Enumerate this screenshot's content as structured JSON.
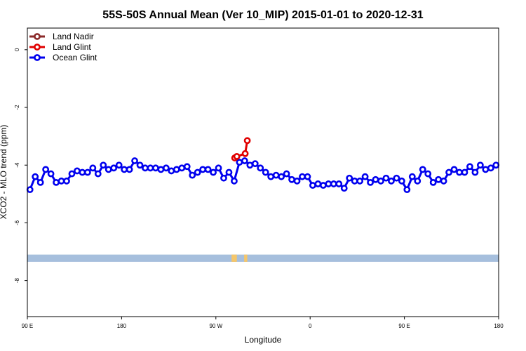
{
  "chart_data": {
    "type": "line",
    "title": "55S-50S Annual Mean (Ver 10_MIP)   2015-01-01 to 2020-12-31",
    "xlabel": "Longitude",
    "ylabel": "XCO2 - MLO trend (ppm)",
    "xlim": [
      90,
      540
    ],
    "ylim": [
      -9.25,
      0.75
    ],
    "x_ticks": [
      {
        "value": 90,
        "label": "90 E"
      },
      {
        "value": 180,
        "label": "180"
      },
      {
        "value": 270,
        "label": "90 W"
      },
      {
        "value": 360,
        "label": "0"
      },
      {
        "value": 450,
        "label": "90 E"
      },
      {
        "value": 540,
        "label": "180"
      }
    ],
    "y_ticks": [
      0,
      -2,
      -4,
      -6,
      -8
    ],
    "grid": false,
    "legend_position": "top-left",
    "series": [
      {
        "name": "Land Nadir",
        "color": "#8b2a2a",
        "x": [],
        "y": []
      },
      {
        "name": "Land Glint",
        "color": "#e00000",
        "x": [
          288,
          290,
          298,
          300
        ],
        "y": [
          -3.75,
          -3.7,
          -3.6,
          -3.15
        ]
      },
      {
        "name": "Ocean Glint",
        "color": "#0000ee",
        "x": [
          92.5,
          97.5,
          102.5,
          107.5,
          112.5,
          117.5,
          122.5,
          127.5,
          132.5,
          137.5,
          142.5,
          147.5,
          152.5,
          157.5,
          162.5,
          167.5,
          172.5,
          177.5,
          182.5,
          187.5,
          192.5,
          197.5,
          202.5,
          207.5,
          212.5,
          217.5,
          222.5,
          227.5,
          232.5,
          237.5,
          242.5,
          247.5,
          252.5,
          257.5,
          262.5,
          267.5,
          272.5,
          277.5,
          282.5,
          287.5,
          292.5,
          297.5,
          302.5,
          307.5,
          312.5,
          317.5,
          322.5,
          327.5,
          332.5,
          337.5,
          342.5,
          347.5,
          352.5,
          357.5,
          362.5,
          367.5,
          372.5,
          377.5,
          382.5,
          387.5,
          392.5,
          397.5,
          402.5,
          407.5,
          412.5,
          417.5,
          422.5,
          427.5,
          432.5,
          437.5,
          442.5,
          447.5,
          452.5,
          457.5,
          462.5,
          467.5,
          472.5,
          477.5,
          482.5,
          487.5,
          492.5,
          497.5,
          502.5,
          507.5,
          512.5,
          517.5,
          522.5,
          527.5,
          532.5,
          537.5
        ],
        "y": [
          -4.85,
          -4.4,
          -4.6,
          -4.15,
          -4.3,
          -4.6,
          -4.55,
          -4.55,
          -4.3,
          -4.2,
          -4.25,
          -4.25,
          -4.1,
          -4.3,
          -4.0,
          -4.15,
          -4.1,
          -4.0,
          -4.15,
          -4.15,
          -3.85,
          -4.0,
          -4.1,
          -4.1,
          -4.1,
          -4.15,
          -4.1,
          -4.2,
          -4.15,
          -4.1,
          -4.05,
          -4.35,
          -4.25,
          -4.15,
          -4.15,
          -4.25,
          -4.1,
          -4.45,
          -4.25,
          -4.55,
          -3.9,
          -3.85,
          -4.0,
          -3.95,
          -4.1,
          -4.25,
          -4.4,
          -4.35,
          -4.4,
          -4.3,
          -4.5,
          -4.55,
          -4.4,
          -4.4,
          -4.7,
          -4.65,
          -4.7,
          -4.65,
          -4.65,
          -4.65,
          -4.8,
          -4.45,
          -4.55,
          -4.55,
          -4.4,
          -4.6,
          -4.5,
          -4.55,
          -4.45,
          -4.55,
          -4.45,
          -4.55,
          -4.85,
          -4.4,
          -4.55,
          -4.15,
          -4.3,
          -4.6,
          -4.5,
          -4.55,
          -4.25,
          -4.15,
          -4.25,
          -4.25,
          -4.05,
          -4.25,
          -4.0,
          -4.15,
          -4.1,
          -4.0
        ]
      }
    ],
    "land_band": {
      "y_range": [
        -7.35,
        -7.1
      ],
      "color": "#a6bfdd",
      "land_color": "#f5c66a",
      "land_segments": [
        [
          285,
          290
        ],
        [
          297,
          300
        ]
      ]
    }
  }
}
